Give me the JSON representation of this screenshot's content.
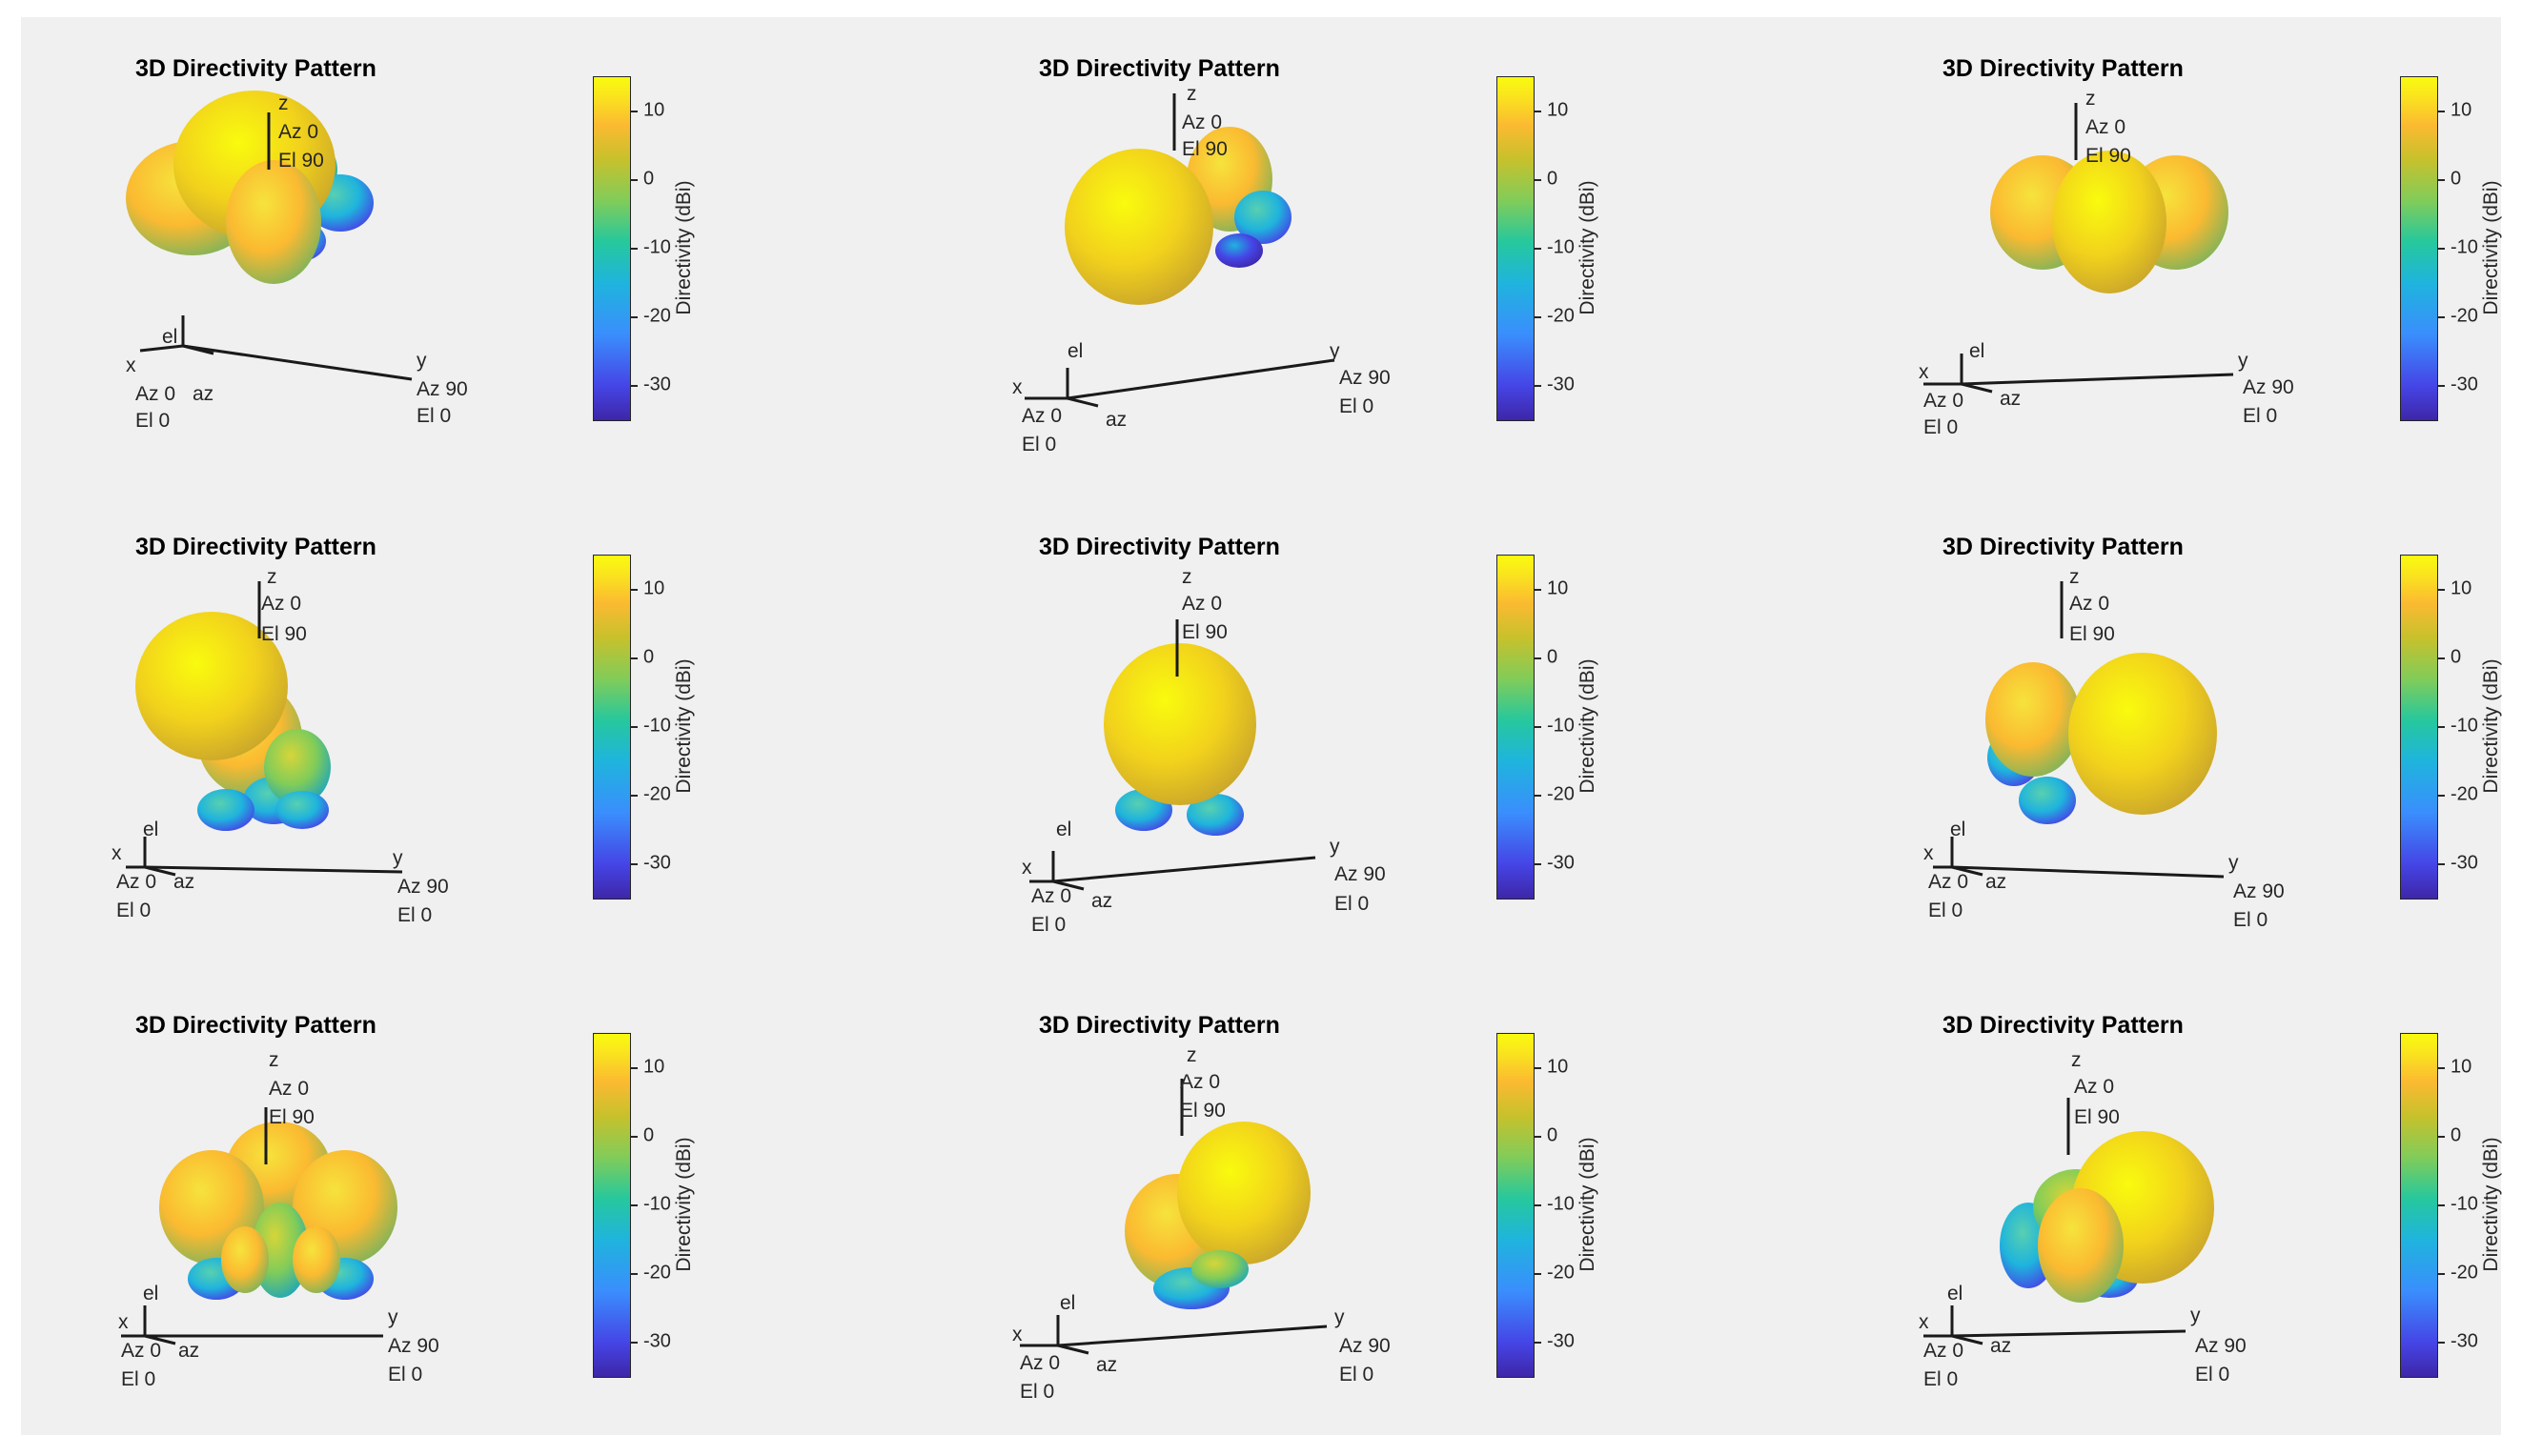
{
  "chart_data": {
    "type": "3d-directivity-pattern-grid",
    "rows": 3,
    "cols": 3,
    "colormap": "parula",
    "colorbar": {
      "label": "Directivity (dBi)",
      "ticks": [
        10,
        0,
        -10,
        -20,
        -30
      ],
      "range": [
        -35,
        15
      ]
    },
    "axis_labels": {
      "z": "z",
      "z_az": "Az 0",
      "z_el": "El 90",
      "y": "y",
      "y_az": "Az 90",
      "y_el": "El 0",
      "x": "x",
      "x_az": "Az 0",
      "x_el": "El 0",
      "el": "el",
      "az": "az"
    },
    "panels": [
      {
        "title": "3D Directivity Pattern",
        "main_beam": "upper-left"
      },
      {
        "title": "3D Directivity Pattern",
        "main_beam": "front-left"
      },
      {
        "title": "3D Directivity Pattern",
        "main_beam": "front"
      },
      {
        "title": "3D Directivity Pattern",
        "main_beam": "upper-left"
      },
      {
        "title": "3D Directivity Pattern",
        "main_beam": "up"
      },
      {
        "title": "3D Directivity Pattern",
        "main_beam": "right"
      },
      {
        "title": "3D Directivity Pattern",
        "main_beam": "top"
      },
      {
        "title": "3D Directivity Pattern",
        "main_beam": "upper-right"
      },
      {
        "title": "3D Directivity Pattern",
        "main_beam": "right"
      }
    ]
  },
  "colors": {
    "yellow": "#f9fb0e",
    "orange": "#fbba31",
    "green": "#81cc59",
    "teal": "#1fb4dd",
    "blue": "#4545e6",
    "navy": "#3e26a8",
    "background": "#f0f0f0"
  }
}
